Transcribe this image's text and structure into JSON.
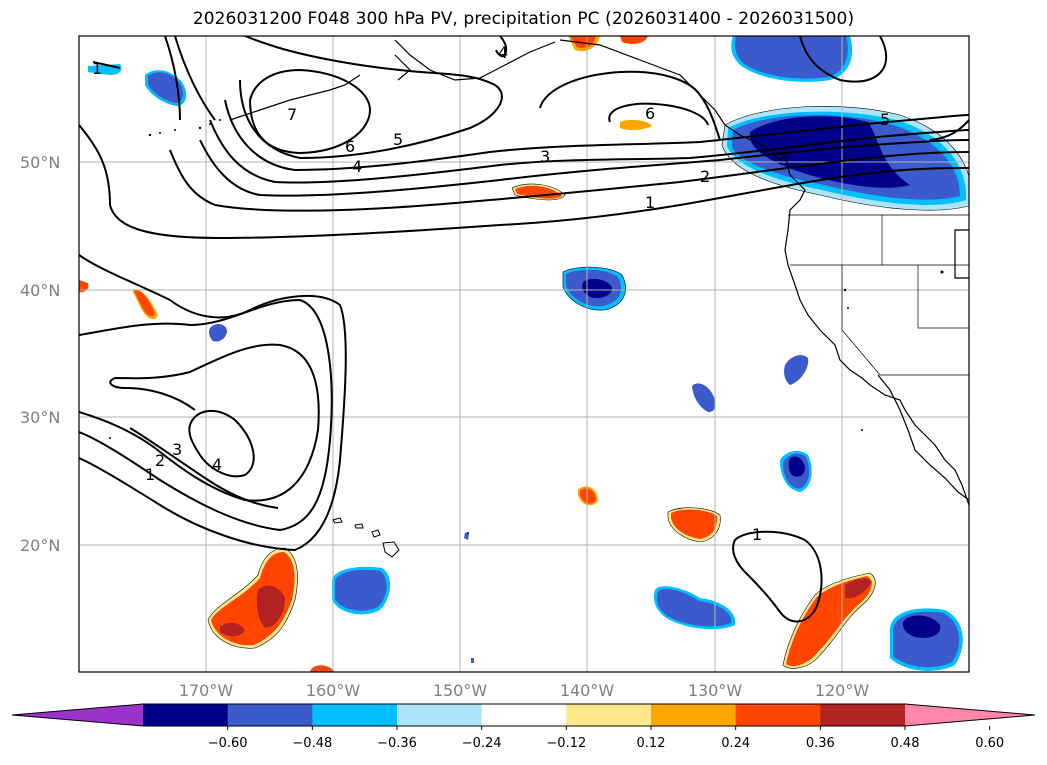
{
  "title": "2026031200 F048 300 hPa PV, precipitation PC (2026031400 - 2026031500)",
  "map": {
    "lon_range": [
      -180,
      -110
    ],
    "lat_range": [
      10,
      60
    ],
    "lat_ticks": [
      "50°N",
      "40°N",
      "30°N",
      "20°N"
    ],
    "lon_ticks": [
      "170°W",
      "160°W",
      "150°W",
      "140°W",
      "130°W",
      "120°W"
    ],
    "gridlines": true
  },
  "contour_labels": [
    "1",
    "4",
    "7",
    "6",
    "5",
    "4",
    "3",
    "2",
    "1",
    "6",
    "5",
    "4",
    "3",
    "2",
    "1",
    "1"
  ],
  "colorbar": {
    "ticks": [
      "−0.60",
      "−0.48",
      "−0.36",
      "−0.24",
      "−0.12",
      "0.12",
      "0.24",
      "0.36",
      "0.48",
      "0.60"
    ],
    "colors": [
      "#9933cc",
      "#00008b",
      "#3b5bcc",
      "#00bfff",
      "#aee4fa",
      "#ffffff",
      "#fde98a",
      "#ffa500",
      "#ff4500",
      "#b22222",
      "#ff88aa"
    ]
  }
}
